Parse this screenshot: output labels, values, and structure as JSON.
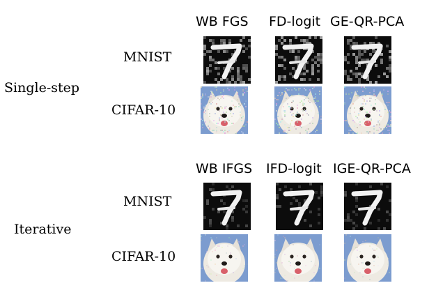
{
  "blocks": [
    {
      "group_label": "Single-step",
      "method_headers": [
        "WB FGS",
        "FD-logit",
        "GE-QR-PCA"
      ],
      "rows": [
        {
          "label": "MNIST",
          "kind": "mnist",
          "noise": "heavy"
        },
        {
          "label": "CIFAR-10",
          "kind": "cifar",
          "noise": "heavy"
        }
      ]
    },
    {
      "group_label": "Iterative",
      "method_headers": [
        "WB IFGS",
        "IFD-logit",
        "IGE-QR-PCA"
      ],
      "rows": [
        {
          "label": "MNIST",
          "kind": "mnist",
          "noise": "light"
        },
        {
          "label": "CIFAR-10",
          "kind": "cifar",
          "noise": "light"
        }
      ]
    }
  ],
  "tile_images": {
    "mnist": "handwritten-digit-7",
    "cifar": "white-samoyed-dog-face"
  }
}
